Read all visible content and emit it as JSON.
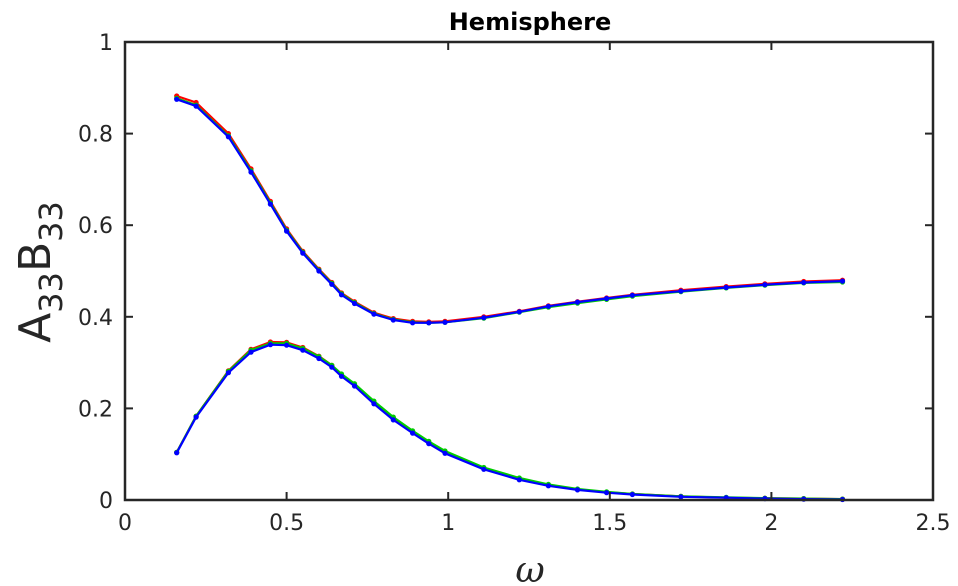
{
  "chart_data": {
    "type": "line",
    "title": "Hemisphere",
    "xlabel": "ω",
    "ylabel": {
      "part1_main": "A",
      "part1_sub": "33",
      "part2_main": "B",
      "part2_sub": "33"
    },
    "xlim": [
      0,
      2.5
    ],
    "ylim": [
      0,
      1
    ],
    "xticks": [
      "0",
      "0.5",
      "1",
      "1.5",
      "2",
      "2.5"
    ],
    "yticks": [
      "0",
      "0.2",
      "0.4",
      "0.6",
      "0.8",
      "1"
    ],
    "grid": false,
    "legend": "none",
    "x": [
      0.16,
      0.22,
      0.32,
      0.39,
      0.45,
      0.5,
      0.55,
      0.6,
      0.64,
      0.67,
      0.71,
      0.77,
      0.83,
      0.89,
      0.94,
      0.99,
      1.11,
      1.22,
      1.31,
      1.4,
      1.49,
      1.57,
      1.72,
      1.86,
      1.98,
      2.1,
      2.22
    ],
    "series": [
      {
        "group": "A33",
        "color": "#ff0000",
        "values": [
          0.882,
          0.868,
          0.8,
          0.723,
          0.652,
          0.592,
          0.543,
          0.504,
          0.475,
          0.452,
          0.433,
          0.409,
          0.396,
          0.39,
          0.389,
          0.39,
          0.4,
          0.412,
          0.424,
          0.433,
          0.441,
          0.448,
          0.458,
          0.466,
          0.472,
          0.477,
          0.48
        ]
      },
      {
        "group": "A33",
        "color": "#00cc00",
        "values": [
          0.877,
          0.862,
          0.795,
          0.719,
          0.649,
          0.589,
          0.541,
          0.502,
          0.473,
          0.45,
          0.431,
          0.407,
          0.394,
          0.388,
          0.387,
          0.388,
          0.397,
          0.41,
          0.421,
          0.43,
          0.438,
          0.445,
          0.455,
          0.463,
          0.469,
          0.474,
          0.476
        ]
      },
      {
        "group": "A33",
        "color": "#0000ff",
        "values": [
          0.875,
          0.86,
          0.793,
          0.716,
          0.646,
          0.587,
          0.539,
          0.5,
          0.471,
          0.448,
          0.429,
          0.406,
          0.393,
          0.387,
          0.387,
          0.388,
          0.398,
          0.411,
          0.423,
          0.432,
          0.44,
          0.447,
          0.456,
          0.464,
          0.47,
          0.475,
          0.478
        ]
      },
      {
        "group": "B33",
        "color": "#ff0000",
        "values": [
          0.104,
          0.183,
          0.282,
          0.329,
          0.345,
          0.344,
          0.333,
          0.314,
          0.294,
          0.273,
          0.252,
          0.213,
          0.178,
          0.148,
          0.125,
          0.104,
          0.069,
          0.046,
          0.032,
          0.023,
          0.017,
          0.013,
          0.008,
          0.005,
          0.004,
          0.003,
          0.002
        ]
      },
      {
        "group": "B33",
        "color": "#00cc00",
        "values": [
          0.104,
          0.183,
          0.281,
          0.327,
          0.342,
          0.342,
          0.331,
          0.313,
          0.294,
          0.275,
          0.254,
          0.216,
          0.181,
          0.151,
          0.128,
          0.107,
          0.071,
          0.048,
          0.034,
          0.024,
          0.018,
          0.013,
          0.008,
          0.006,
          0.004,
          0.003,
          0.002
        ]
      },
      {
        "group": "B33",
        "color": "#0000ff",
        "values": [
          0.103,
          0.181,
          0.278,
          0.323,
          0.339,
          0.338,
          0.327,
          0.309,
          0.29,
          0.27,
          0.249,
          0.21,
          0.175,
          0.146,
          0.123,
          0.102,
          0.067,
          0.044,
          0.031,
          0.022,
          0.016,
          0.012,
          0.007,
          0.005,
          0.003,
          0.002,
          0.001
        ]
      }
    ]
  }
}
